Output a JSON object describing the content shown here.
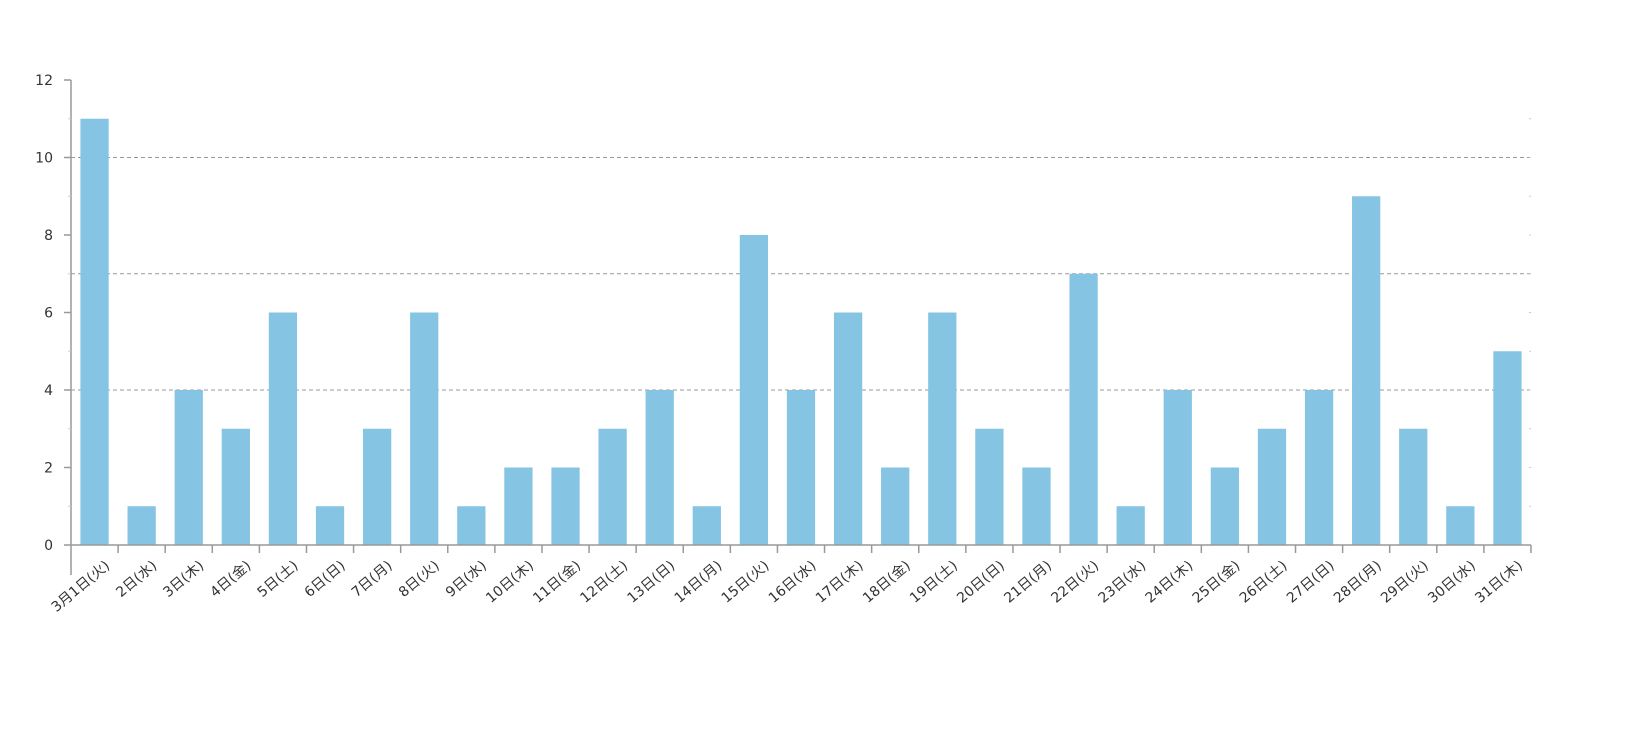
{
  "chart_data": {
    "type": "bar",
    "categories": [
      "3月1日(火)",
      "2日(水)",
      "3日(木)",
      "4日(金)",
      "5日(土)",
      "6日(日)",
      "7日(月)",
      "8日(火)",
      "9日(水)",
      "10日(木)",
      "11日(金)",
      "12日(土)",
      "13日(日)",
      "14日(月)",
      "15日(火)",
      "16日(水)",
      "17日(木)",
      "18日(金)",
      "19日(土)",
      "20日(日)",
      "21日(月)",
      "22日(火)",
      "23日(水)",
      "24日(木)",
      "25日(金)",
      "26日(土)",
      "27日(日)",
      "28日(月)",
      "29日(火)",
      "30日(水)",
      "31日(木)"
    ],
    "values": [
      11,
      1,
      4,
      3,
      6,
      1,
      3,
      6,
      1,
      2,
      2,
      3,
      4,
      1,
      8,
      4,
      6,
      2,
      6,
      3,
      2,
      7,
      1,
      4,
      2,
      3,
      4,
      9,
      3,
      1,
      5
    ],
    "ylim": [
      0,
      12
    ],
    "yticks": [
      "0",
      "2",
      "4",
      "6",
      "8",
      "10",
      "12"
    ],
    "reference_lines": [
      4,
      7,
      10
    ],
    "grid": false,
    "colors": {
      "bar": "#85c4e3",
      "axis": "#999999",
      "reference": "#999999"
    }
  }
}
